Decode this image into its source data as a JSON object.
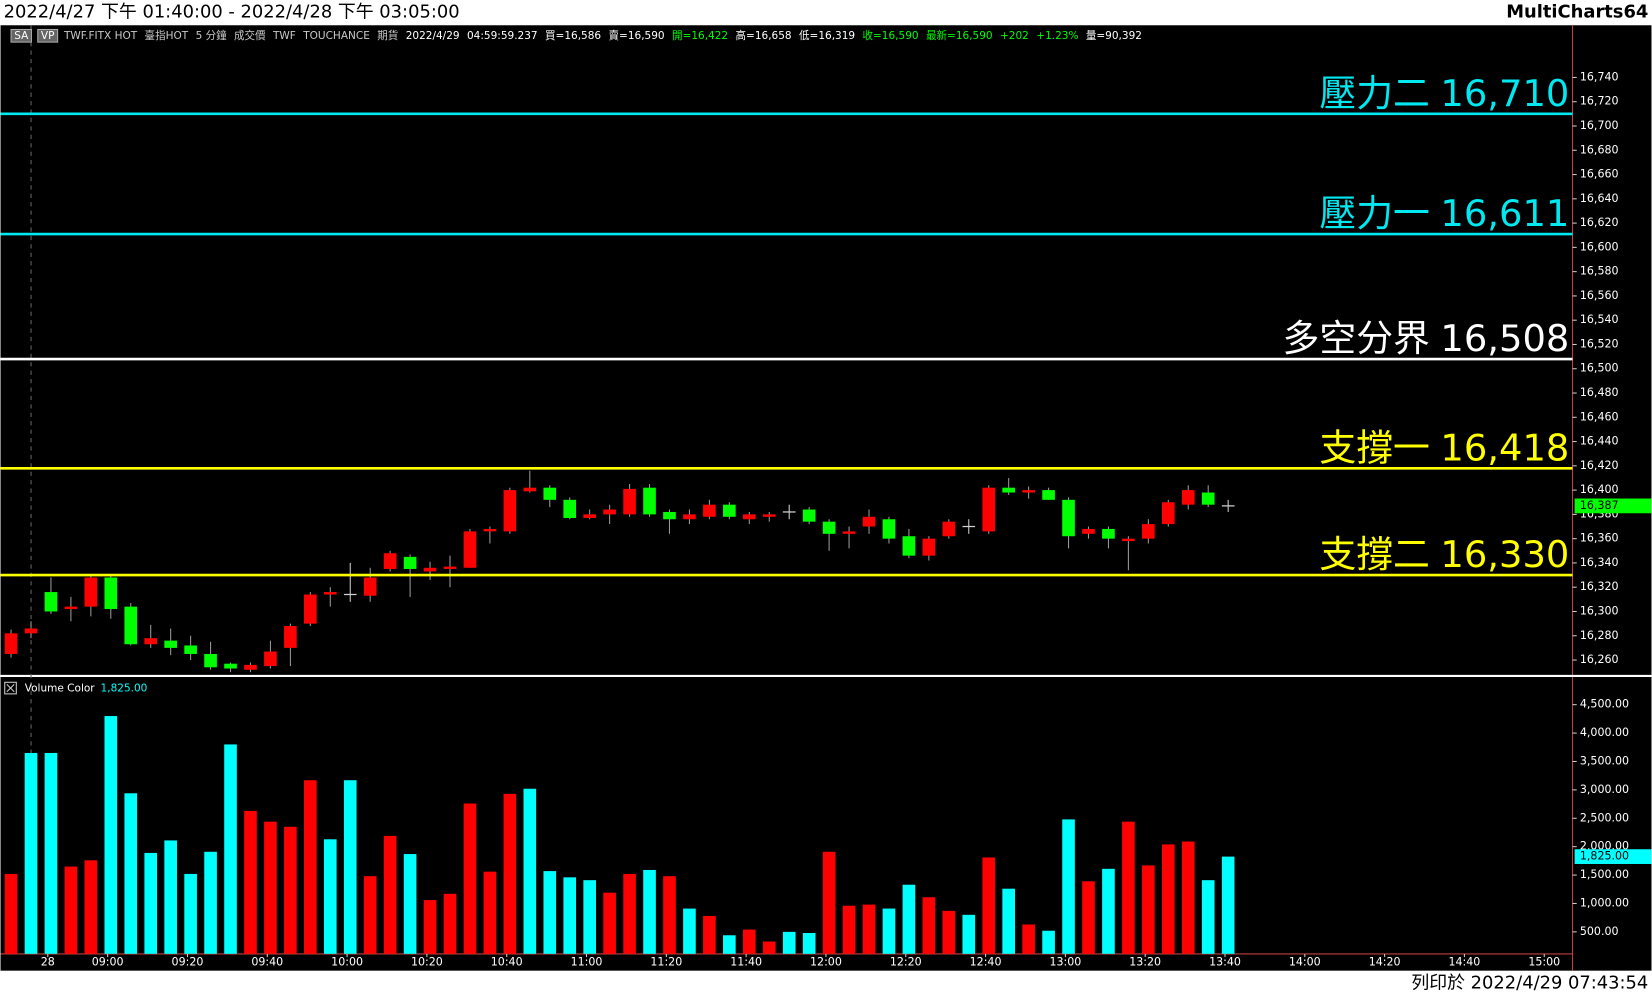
{
  "page": {
    "range": "2022/4/27 下午 01:40:00 - 2022/4/28 下午 03:05:00",
    "app": "MultiCharts64",
    "footer": "列印於 2022/4/29 07:43:54",
    "toolbar": [
      {
        "text": "SA",
        "color": "#ffffff",
        "box": true
      },
      {
        "text": "VP",
        "color": "#ffffff",
        "box": true
      },
      {
        "text": "TWF.FITX HOT",
        "color": "#c8c8c8"
      },
      {
        "text": "臺指HOT",
        "color": "#c8c8c8"
      },
      {
        "text": "5 分鐘",
        "color": "#c8c8c8"
      },
      {
        "text": "成交價",
        "color": "#c8c8c8"
      },
      {
        "text": "TWF",
        "color": "#c8c8c8"
      },
      {
        "text": "TOUCHANCE",
        "color": "#c8c8c8"
      },
      {
        "text": "期貨",
        "color": "#c8c8c8"
      },
      {
        "text": "2022/4/29",
        "color": "#ffffff"
      },
      {
        "text": "04:59:59.237",
        "color": "#ffffff"
      },
      {
        "text": "買=16,586",
        "color": "#ffffff"
      },
      {
        "text": "賣=16,590",
        "color": "#ffffff"
      },
      {
        "text": "開=16,422",
        "color": "#00ff00"
      },
      {
        "text": "高=16,658",
        "color": "#ffffff"
      },
      {
        "text": "低=16,319",
        "color": "#ffffff"
      },
      {
        "text": "收=16,590",
        "color": "#00ff00"
      },
      {
        "text": "最新=16,590",
        "color": "#00ff00"
      },
      {
        "text": "+202",
        "color": "#00ff00"
      },
      {
        "text": "+1.23%",
        "color": "#00ff00"
      },
      {
        "text": "量=90,392",
        "color": "#ffffff"
      }
    ]
  },
  "chart_data": [
    {
      "type": "candlestick",
      "up_color": "#ff0000",
      "down_color": "#00ff00",
      "doji_color": "#d0d0d0",
      "open": [
        16265,
        16282,
        16316,
        16302,
        16304,
        16328,
        16304,
        16273,
        16276,
        16272,
        16265,
        16257,
        16252,
        16255,
        16270,
        16290,
        16314,
        16314,
        16313,
        16335,
        16345,
        16333,
        16335,
        16336,
        16366,
        16366,
        16399,
        16402,
        16392,
        16377,
        16380,
        16380,
        16402,
        16382,
        16376,
        16378,
        16388,
        16376,
        16378,
        16382,
        16384,
        16374,
        16364,
        16370,
        16376,
        16362,
        16346,
        16362,
        16370,
        16366,
        16402,
        16398,
        16400,
        16392,
        16364,
        16368,
        16358,
        16360,
        16372,
        16388,
        16398,
        16387
      ],
      "high": [
        16285,
        16292,
        16328,
        16312,
        16330,
        16330,
        16307,
        16289,
        16286,
        16280,
        16275,
        16258,
        16258,
        16276,
        16290,
        16316,
        16320,
        16340,
        16336,
        16350,
        16347,
        16341,
        16346,
        16368,
        16370,
        16402,
        16416,
        16404,
        16394,
        16384,
        16388,
        16405,
        16405,
        16384,
        16384,
        16392,
        16390,
        16382,
        16382,
        16388,
        16386,
        16376,
        16370,
        16384,
        16378,
        16368,
        16362,
        16376,
        16376,
        16404,
        16410,
        16403,
        16402,
        16394,
        16370,
        16370,
        16362,
        16376,
        16392,
        16404,
        16404,
        16392
      ],
      "low": [
        16262,
        16278,
        16298,
        16292,
        16296,
        16294,
        16272,
        16270,
        16264,
        16260,
        16252,
        16250,
        16250,
        16253,
        16255,
        16288,
        16304,
        16308,
        16308,
        16333,
        16312,
        16326,
        16320,
        16336,
        16356,
        16364,
        16398,
        16386,
        16376,
        16376,
        16372,
        16378,
        16378,
        16364,
        16372,
        16376,
        16376,
        16372,
        16374,
        16376,
        16372,
        16350,
        16352,
        16364,
        16356,
        16344,
        16342,
        16360,
        16364,
        16364,
        16396,
        16393,
        16392,
        16352,
        16360,
        16352,
        16334,
        16356,
        16370,
        16384,
        16386,
        16382
      ],
      "close": [
        16282,
        16286,
        16300,
        16304,
        16328,
        16302,
        16273,
        16278,
        16270,
        16265,
        16254,
        16253,
        16256,
        16267,
        16288,
        16314,
        16316,
        16314,
        16328,
        16348,
        16335,
        16336,
        16337,
        16366,
        16368,
        16400,
        16402,
        16392,
        16377,
        16380,
        16384,
        16401,
        16380,
        16376,
        16380,
        16388,
        16378,
        16380,
        16380,
        16382,
        16374,
        16364,
        16366,
        16378,
        16360,
        16346,
        16360,
        16374,
        16370,
        16402,
        16398,
        16400,
        16392,
        16362,
        16368,
        16360,
        16360,
        16372,
        16390,
        16400,
        16388,
        16387
      ],
      "ylim": [
        16246,
        16783
      ],
      "yticks": [
        {
          "value": 16260,
          "label": "16,260"
        },
        {
          "value": 16280,
          "label": "16,280"
        },
        {
          "value": 16300,
          "label": "16,300"
        },
        {
          "value": 16320,
          "label": "16,320"
        },
        {
          "value": 16340,
          "label": "16,340"
        },
        {
          "value": 16360,
          "label": "16,360"
        },
        {
          "value": 16380,
          "label": "16,380"
        },
        {
          "value": 16400,
          "label": "16,400"
        },
        {
          "value": 16420,
          "label": "16,420"
        },
        {
          "value": 16440,
          "label": "16,440"
        },
        {
          "value": 16460,
          "label": "16,460"
        },
        {
          "value": 16480,
          "label": "16,480"
        },
        {
          "value": 16500,
          "label": "16,500"
        },
        {
          "value": 16520,
          "label": "16,520"
        },
        {
          "value": 16540,
          "label": "16,540"
        },
        {
          "value": 16560,
          "label": "16,560"
        },
        {
          "value": 16580,
          "label": "16,580"
        },
        {
          "value": 16600,
          "label": "16,600"
        },
        {
          "value": 16620,
          "label": "16,620"
        },
        {
          "value": 16640,
          "label": "16,640"
        },
        {
          "value": 16660,
          "label": "16,660"
        },
        {
          "value": 16680,
          "label": "16,680"
        },
        {
          "value": 16700,
          "label": "16,700"
        },
        {
          "value": 16720,
          "label": "16,720"
        },
        {
          "value": 16740,
          "label": "16,740"
        }
      ],
      "last_price": {
        "value": 16387,
        "label": "16,387",
        "color": "#00ff00"
      },
      "levels": [
        {
          "name": "壓力二",
          "value": 16710,
          "label": "16,710",
          "color": "#00e8f0"
        },
        {
          "name": "壓力一",
          "value": 16611,
          "label": "16,611",
          "color": "#00e8f0"
        },
        {
          "name": "多空分界",
          "value": 16508,
          "label": "16,508",
          "color": "#ffffff"
        },
        {
          "name": "支撐一",
          "value": 16418,
          "label": "16,418",
          "color": "#ffff00"
        },
        {
          "name": "支撐二",
          "value": 16330,
          "label": "16,330",
          "color": "#ffff00"
        }
      ]
    },
    {
      "type": "bar",
      "title": "Volume Color",
      "current": {
        "value": 1825,
        "label": "1,825.00",
        "color": "#00ffff"
      },
      "categories": [
        null,
        null,
        "28",
        null,
        null,
        "09:00",
        null,
        null,
        null,
        "09:20",
        null,
        null,
        null,
        "09:40",
        null,
        null,
        null,
        "10:00",
        null,
        null,
        null,
        "10:20",
        null,
        null,
        null,
        "10:40",
        null,
        null,
        null,
        "11:00",
        null,
        null,
        null,
        "11:20",
        null,
        null,
        null,
        "11:40",
        null,
        null,
        null,
        "12:00",
        null,
        null,
        null,
        "12:20",
        null,
        null,
        null,
        "12:40",
        null,
        null,
        null,
        "13:00",
        null,
        null,
        null,
        "13:20",
        null,
        null,
        null,
        "13:40",
        null,
        null,
        null,
        "14:00",
        null,
        null,
        null,
        "14:20",
        null,
        null,
        null,
        "14:40",
        null,
        null,
        null,
        "15:00"
      ],
      "values": [
        1520,
        3650,
        3650,
        1650,
        1760,
        4300,
        2940,
        1890,
        2110,
        1520,
        1910,
        3800,
        2630,
        2440,
        2350,
        3170,
        2130,
        3170,
        1480,
        2190,
        1870,
        1060,
        1170,
        2760,
        1560,
        2930,
        3020,
        1570,
        1460,
        1410,
        1190,
        1520,
        1590,
        1480,
        910,
        780,
        440,
        540,
        330,
        500,
        480,
        1910,
        960,
        980,
        910,
        1330,
        1110,
        870,
        800,
        1810,
        1260,
        630,
        520,
        2480,
        1390,
        1610,
        2440,
        1670,
        2040,
        2090,
        1410,
        1825,
        null,
        null,
        null,
        null,
        null,
        null,
        null,
        null,
        null,
        null,
        null,
        null,
        null,
        null,
        null,
        null
      ],
      "colors": [
        "#ff0000",
        "#00ffff",
        "#00ffff",
        "#ff0000",
        "#ff0000",
        "#00ffff",
        "#00ffff",
        "#00ffff",
        "#00ffff",
        "#00ffff",
        "#00ffff",
        "#00ffff",
        "#ff0000",
        "#ff0000",
        "#ff0000",
        "#ff0000",
        "#00ffff",
        "#00ffff",
        "#ff0000",
        "#ff0000",
        "#00ffff",
        "#ff0000",
        "#ff0000",
        "#ff0000",
        "#ff0000",
        "#ff0000",
        "#00ffff",
        "#00ffff",
        "#00ffff",
        "#00ffff",
        "#ff0000",
        "#ff0000",
        "#00ffff",
        "#ff0000",
        "#00ffff",
        "#ff0000",
        "#00ffff",
        "#ff0000",
        "#ff0000",
        "#00ffff",
        "#00ffff",
        "#ff0000",
        "#ff0000",
        "#ff0000",
        "#00ffff",
        "#00ffff",
        "#ff0000",
        "#ff0000",
        "#00ffff",
        "#ff0000",
        "#00ffff",
        "#ff0000",
        "#00ffff",
        "#00ffff",
        "#ff0000",
        "#00ffff",
        "#ff0000",
        "#ff0000",
        "#ff0000",
        "#ff0000",
        "#00ffff",
        "#00ffff",
        null,
        null,
        null,
        null,
        null,
        null,
        null,
        null,
        null,
        null,
        null,
        null,
        null,
        null,
        null,
        null
      ],
      "ylim": [
        0,
        4950
      ],
      "yticks": [
        {
          "value": 500,
          "label": "500.00"
        },
        {
          "value": 1000,
          "label": "1,000.00"
        },
        {
          "value": 1500,
          "label": "1,500.00"
        },
        {
          "value": 2000,
          "label": "2,000.00"
        },
        {
          "value": 2500,
          "label": "2,500.00"
        },
        {
          "value": 3000,
          "label": "3,000.00"
        },
        {
          "value": 3500,
          "label": "3,500.00"
        },
        {
          "value": 4000,
          "label": "4,000.00"
        },
        {
          "value": 4500,
          "label": "4,500.00"
        }
      ]
    }
  ]
}
